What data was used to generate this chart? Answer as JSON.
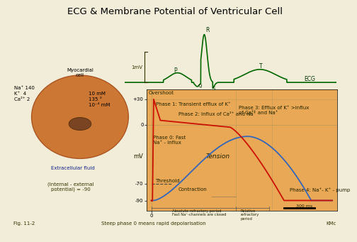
{
  "title": "ECG & Membrane Potential of Ventricular Cell",
  "bg_color": "#f2edd8",
  "plot_bg_color": "#e8a855",
  "title_fontsize": 9.5,
  "ecg_color": "#006600",
  "ap_color": "#cc1100",
  "tension_color": "#3366bb",
  "annotations": {
    "phase0": "Phase 0: Fast\nNa⁺ - influx",
    "phase1": "Phase 1: Transient efflux of K⁺",
    "phase2": "Phase 2: Influx of Ca²⁺ and Na⁺",
    "phase3": "Phase 3: Efflux of K⁺ >influx\nof Ca²⁺ and Na⁺",
    "phase4": "Phase 4: Na⁺- K⁺ - pump",
    "tension": "Tension",
    "contraction": "Contraction",
    "threshold": "Threshold",
    "overshoot": "Overshoot",
    "absolute_ref": "Absolute refractory period\nFast Na⁺-channels are closed",
    "relative_ref": "Relative\nrefractory\nperiod",
    "scale_300": "300 ms",
    "ecg_label": "ECG",
    "mv_label": "mV",
    "fig_label": "Fig. 11-2",
    "kmc_label": "KMc",
    "subtitle": "Steep phase 0 means rapid depolarisation",
    "ecg_scale": "1mV",
    "internal_ext": "(Internal - external\npotential) = -90"
  },
  "cell_info": {
    "extracellular": "Na⁺ 140\nK⁺  4\nCa²⁺ 2",
    "intracellular": "10 mM\n135 °\n10⁻⁴ mM",
    "myocardial": "Myocardial\ncell",
    "extracellular_label": "Extracellular fluid"
  }
}
